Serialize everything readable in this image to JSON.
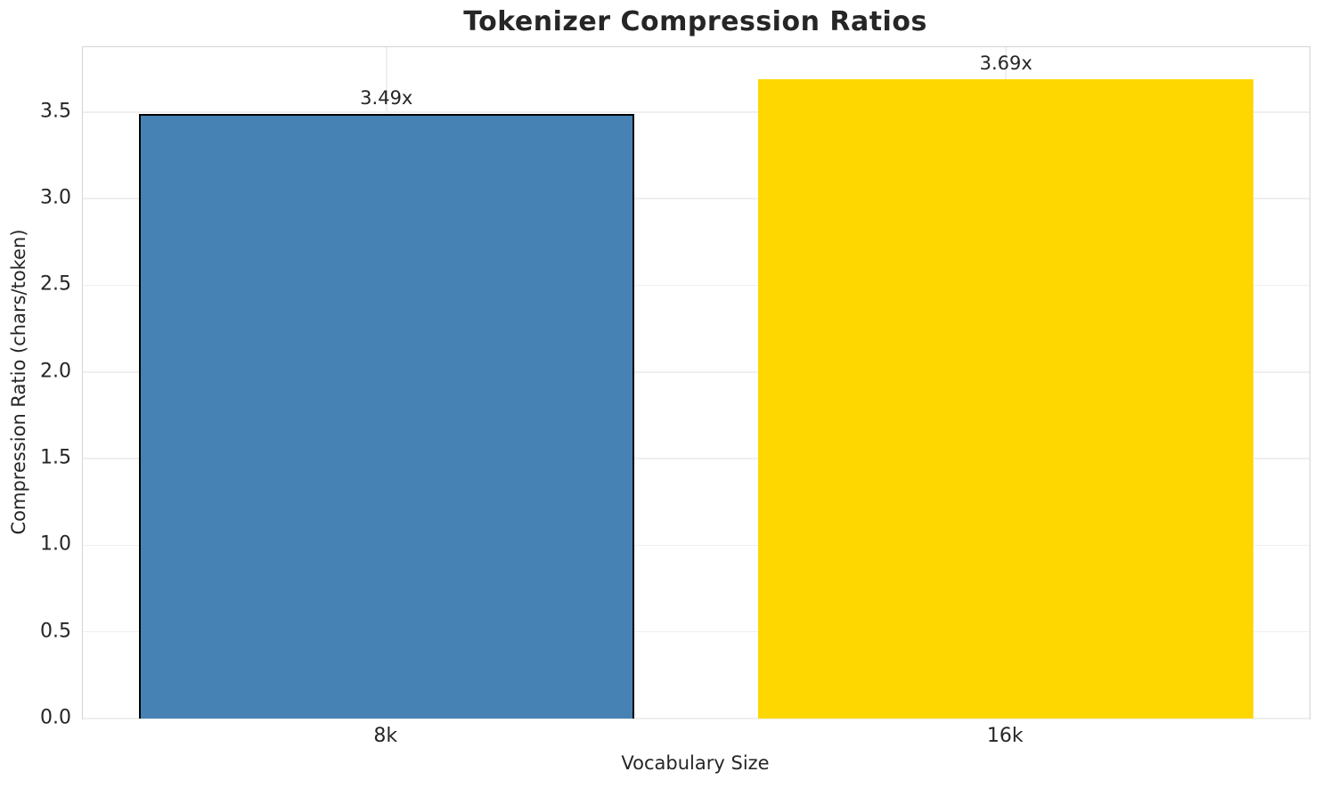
{
  "chart_data": {
    "type": "bar",
    "title": "Tokenizer Compression Ratios",
    "xlabel": "Vocabulary Size",
    "ylabel": "Compression Ratio (chars/token)",
    "categories": [
      "8k",
      "16k"
    ],
    "values": [
      3.49,
      3.69
    ],
    "bar_labels": [
      "3.49x",
      "3.69x"
    ],
    "bar_colors": [
      "#4682B4",
      "#FFD700"
    ],
    "bar_edge_colors": [
      "#000000",
      "none"
    ],
    "ytick_labels": [
      "0.0",
      "0.5",
      "1.0",
      "1.5",
      "2.0",
      "2.5",
      "3.0",
      "3.5"
    ],
    "yticks": [
      0.0,
      0.5,
      1.0,
      1.5,
      2.0,
      2.5,
      3.0,
      3.5
    ],
    "ylim": [
      0,
      3.8745
    ],
    "xlim": [
      -0.49,
      1.49
    ],
    "bar_width_fraction": 0.8,
    "grid": true,
    "legend": "none",
    "grid_color": "#efefef",
    "axes_edge_color": "#d4d4d4",
    "text_color": "#262626",
    "background_color": "#ffffff"
  }
}
